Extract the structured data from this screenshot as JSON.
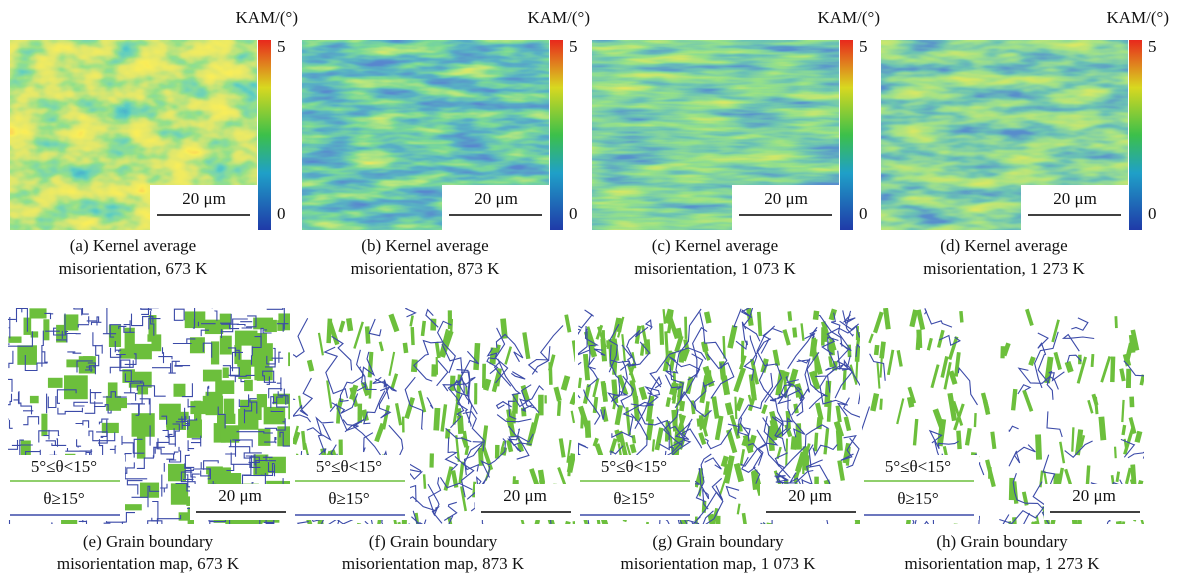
{
  "panels_top": [
    {
      "colorbar_label": "KAM/(°)",
      "colorbar_max": "5",
      "colorbar_min": "0",
      "scale_bar": "20 μm",
      "caption": [
        "(a) Kernel average",
        "misorientation, 673 K"
      ]
    },
    {
      "colorbar_label": "KAM/(°)",
      "colorbar_max": "5",
      "colorbar_min": "0",
      "scale_bar": "20 μm",
      "caption": [
        "(b) Kernel average",
        "misorientation, 873 K"
      ]
    },
    {
      "colorbar_label": "KAM/(°)",
      "colorbar_max": "5",
      "colorbar_min": "0",
      "scale_bar": "20 μm",
      "caption": [
        "(c) Kernel average",
        "misorientation, 1 073 K"
      ]
    },
    {
      "colorbar_label": "KAM/(°)",
      "colorbar_max": "5",
      "colorbar_min": "0",
      "scale_bar": "20 μm",
      "caption": [
        "(d) Kernel average",
        "misorientation, 1 273 K"
      ]
    }
  ],
  "panels_bottom": [
    {
      "legend": [
        "5°≤θ<15°",
        "θ≥15°"
      ],
      "scale_bar": "20 μm",
      "caption": [
        "(e) Grain boundary",
        "misorientation map, 673 K"
      ]
    },
    {
      "legend": [
        "5°≤θ<15°",
        "θ≥15°"
      ],
      "scale_bar": "20 μm",
      "caption": [
        "(f) Grain boundary",
        "misorientation map, 873 K"
      ]
    },
    {
      "legend": [
        "5°≤θ<15°",
        "θ≥15°"
      ],
      "scale_bar": "20 μm",
      "caption": [
        "(g) Grain boundary",
        "misorientation map, 1 073 K"
      ]
    },
    {
      "legend": [
        "5°≤θ<15°",
        "θ≥15°"
      ],
      "scale_bar": "20 μm",
      "caption": [
        "(h) Grain boundary",
        "misorientation map, 1 273 K"
      ]
    }
  ]
}
